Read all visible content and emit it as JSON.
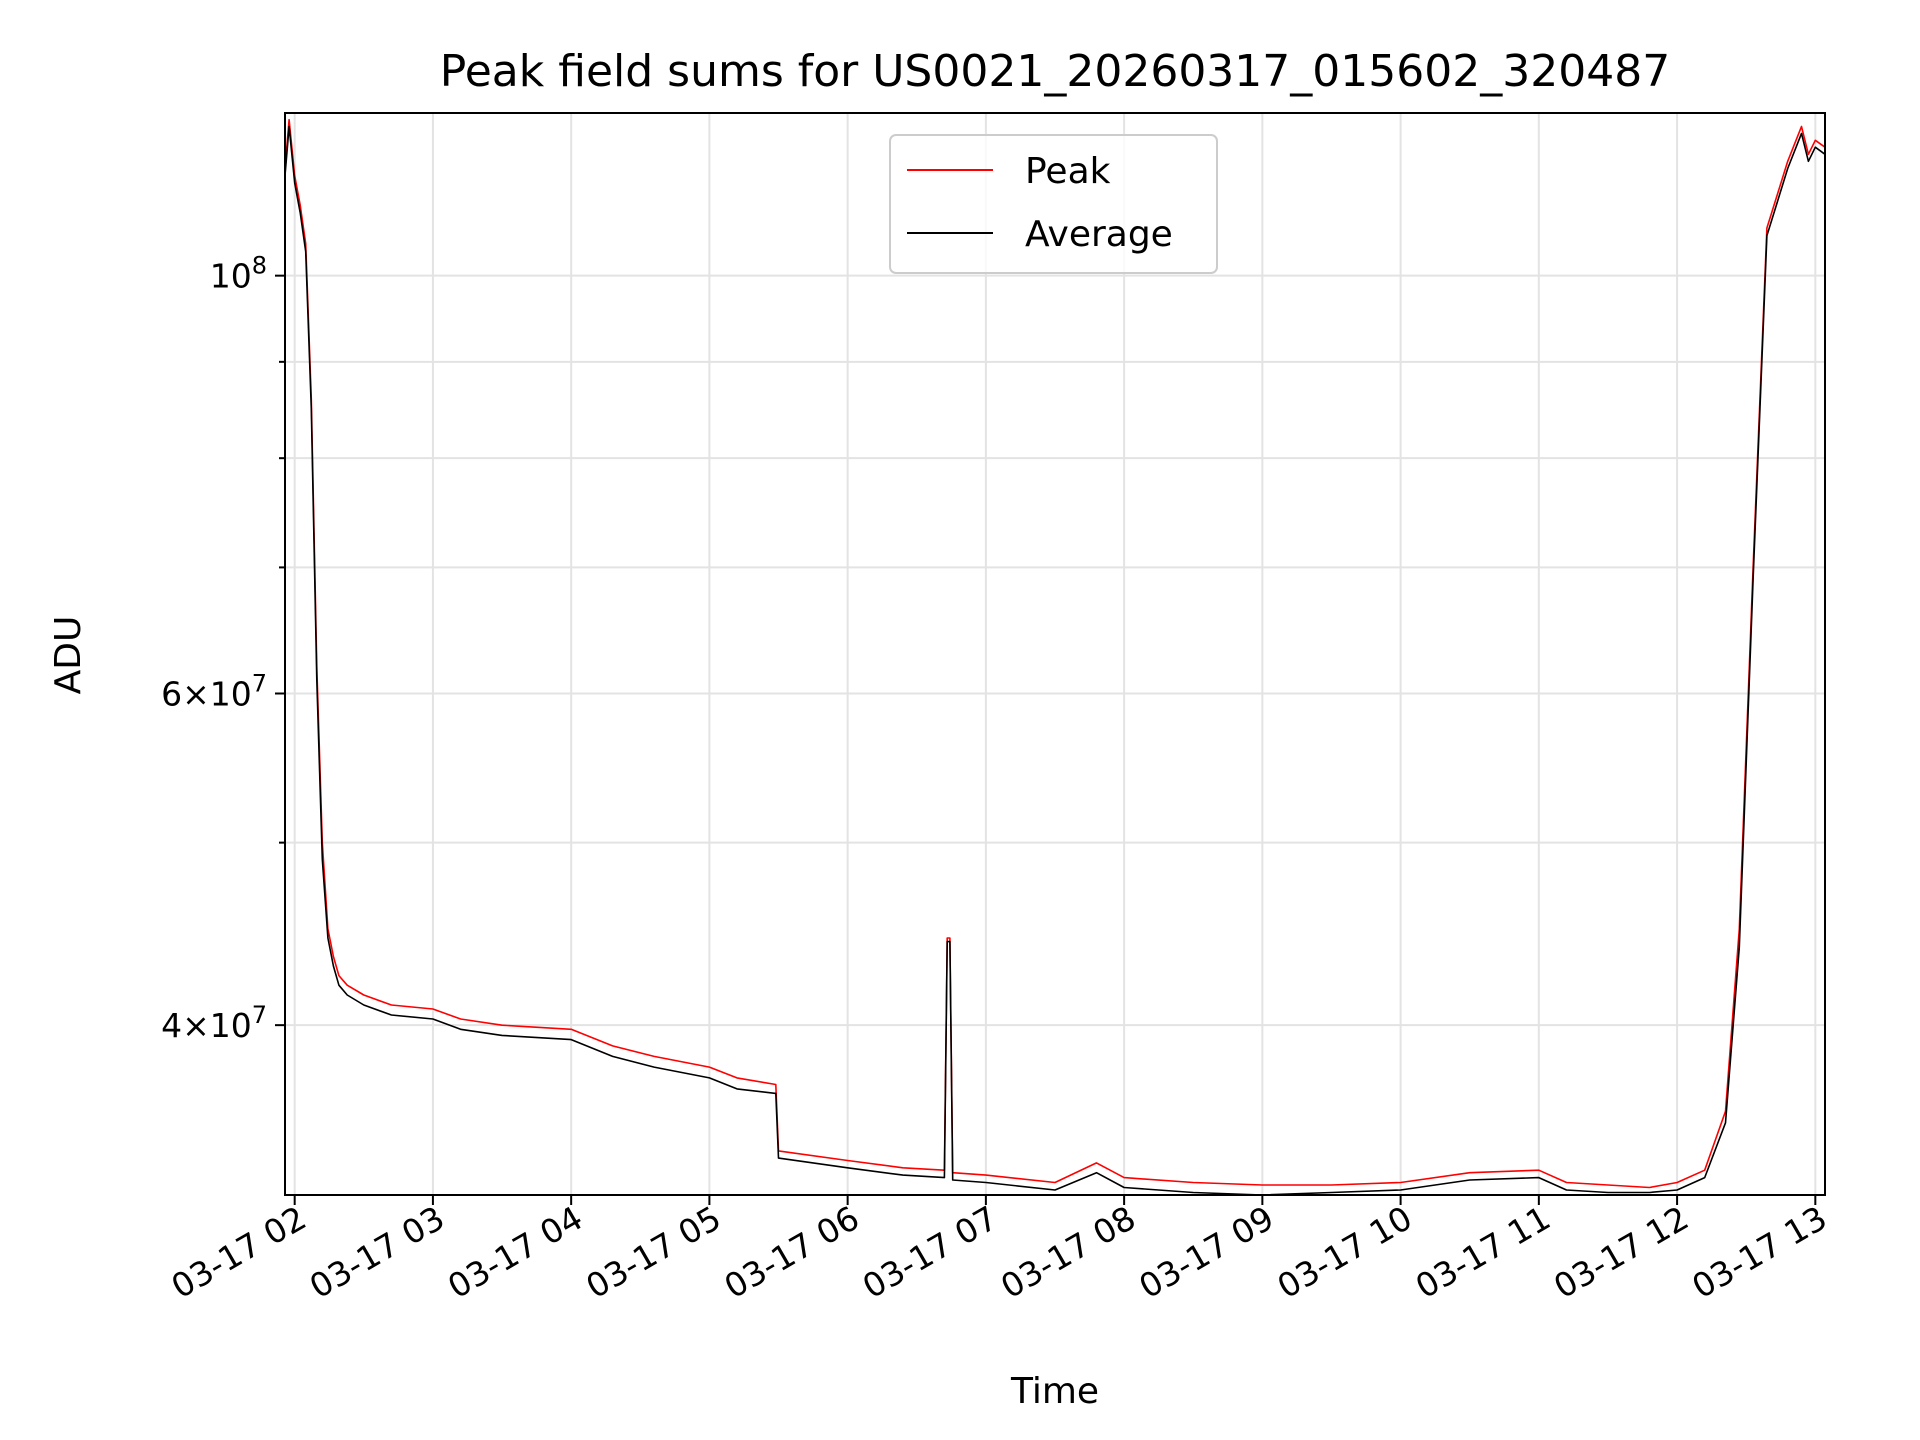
{
  "chart_data": {
    "type": "line",
    "title": "Peak field sums for US0021_20260317_015602_320487",
    "xlabel": "Time",
    "ylabel": "ADU",
    "yscale": "log",
    "xlim": [
      1.93,
      13.07
    ],
    "ylim": [
      32500000,
      122000000
    ],
    "grid": true,
    "legend_position": "top-center",
    "x_ticks": [
      {
        "value": 2,
        "label": "03-17 02"
      },
      {
        "value": 3,
        "label": "03-17 03"
      },
      {
        "value": 4,
        "label": "03-17 04"
      },
      {
        "value": 5,
        "label": "03-17 05"
      },
      {
        "value": 6,
        "label": "03-17 06"
      },
      {
        "value": 7,
        "label": "03-17 07"
      },
      {
        "value": 8,
        "label": "03-17 08"
      },
      {
        "value": 9,
        "label": "03-17 09"
      },
      {
        "value": 10,
        "label": "03-17 10"
      },
      {
        "value": 11,
        "label": "03-17 11"
      },
      {
        "value": 12,
        "label": "03-17 12"
      },
      {
        "value": 13,
        "label": "03-17 13"
      }
    ],
    "y_major_ticks": [
      {
        "value": 40000000,
        "base": "4",
        "exp": "7"
      },
      {
        "value": 60000000,
        "base": "6",
        "exp": "7"
      },
      {
        "value": 100000000,
        "base": "",
        "exp": "8"
      }
    ],
    "y_minor_ticks": [
      50000000,
      70000000,
      80000000,
      90000000
    ],
    "series": [
      {
        "name": "Peak",
        "color": "#ff0000",
        "x": [
          1.93,
          1.96,
          2.0,
          2.02,
          2.04,
          2.08,
          2.12,
          2.16,
          2.2,
          2.24,
          2.28,
          2.32,
          2.38,
          2.5,
          2.7,
          3.0,
          3.2,
          3.5,
          4.0,
          4.3,
          4.6,
          5.0,
          5.2,
          5.48,
          5.5,
          6.0,
          6.4,
          6.7,
          6.72,
          6.74,
          6.76,
          7.0,
          7.5,
          7.8,
          8.0,
          8.5,
          9.0,
          9.5,
          10.0,
          10.5,
          11.0,
          11.2,
          11.5,
          11.8,
          12.0,
          12.2,
          12.35,
          12.45,
          12.55,
          12.65,
          12.8,
          12.9,
          12.95,
          13.0,
          13.07
        ],
        "values": [
          114000000,
          121000000,
          113000000,
          111000000,
          109000000,
          104000000,
          86000000,
          62000000,
          50000000,
          45000000,
          43500000,
          42500000,
          42000000,
          41500000,
          41000000,
          40800000,
          40300000,
          40000000,
          39800000,
          39000000,
          38500000,
          38000000,
          37500000,
          37200000,
          34300000,
          33900000,
          33600000,
          33500000,
          44500000,
          44500000,
          33400000,
          33300000,
          33000000,
          33800000,
          33200000,
          33000000,
          32900000,
          32900000,
          33000000,
          33400000,
          33500000,
          33000000,
          32900000,
          32800000,
          33000000,
          33500000,
          36000000,
          45000000,
          70000000,
          106000000,
          115000000,
          120000000,
          116000000,
          118000000,
          117000000
        ]
      },
      {
        "name": "Average",
        "color": "#000000",
        "x": [
          1.93,
          1.96,
          2.0,
          2.02,
          2.04,
          2.08,
          2.12,
          2.16,
          2.2,
          2.24,
          2.28,
          2.32,
          2.38,
          2.5,
          2.7,
          3.0,
          3.2,
          3.5,
          4.0,
          4.3,
          4.6,
          5.0,
          5.2,
          5.48,
          5.5,
          6.0,
          6.4,
          6.7,
          6.72,
          6.74,
          6.76,
          7.0,
          7.5,
          7.8,
          8.0,
          8.5,
          9.0,
          9.5,
          10.0,
          10.5,
          11.0,
          11.2,
          11.5,
          11.8,
          12.0,
          12.2,
          12.35,
          12.45,
          12.55,
          12.65,
          12.8,
          12.9,
          12.95,
          13.0,
          13.07
        ],
        "values": [
          113000000,
          120000000,
          112000000,
          110000000,
          108000000,
          103000000,
          85000000,
          61000000,
          49000000,
          44500000,
          43000000,
          42000000,
          41500000,
          41000000,
          40500000,
          40300000,
          39800000,
          39500000,
          39300000,
          38500000,
          38000000,
          37500000,
          37000000,
          36800000,
          34000000,
          33600000,
          33300000,
          33200000,
          44300000,
          44300000,
          33100000,
          33000000,
          32700000,
          33400000,
          32800000,
          32600000,
          32500000,
          32600000,
          32700000,
          33100000,
          33200000,
          32700000,
          32600000,
          32600000,
          32700000,
          33200000,
          35500000,
          44000000,
          69000000,
          105000000,
          114000000,
          119000000,
          115000000,
          117000000,
          116000000
        ]
      }
    ]
  }
}
